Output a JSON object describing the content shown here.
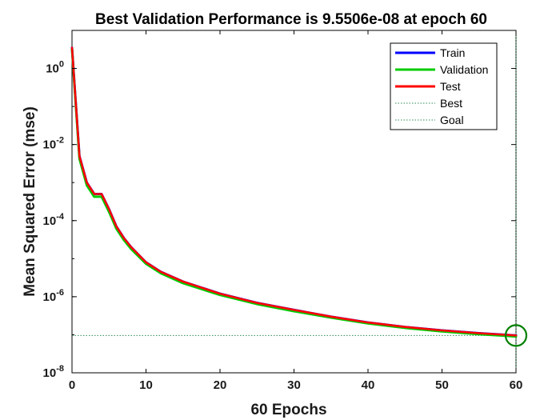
{
  "chart_data": {
    "type": "line",
    "title": "Best Validation Performance is 9.5506e-08 at epoch 60",
    "xlabel": "60 Epochs",
    "ylabel": "Mean Squared Error  (mse)",
    "xlim": [
      0,
      60
    ],
    "ylim": [
      1e-08,
      10
    ],
    "yscale": "log",
    "grid": false,
    "legend_position": "top-right",
    "x_ticks": [
      0,
      10,
      20,
      30,
      40,
      50,
      60
    ],
    "x_tick_labels": [
      "0",
      "10",
      "20",
      "30",
      "40",
      "50",
      "60"
    ],
    "y_ticks": [
      1e-08,
      1e-06,
      0.0001,
      0.01,
      1
    ],
    "y_tick_labels": [
      {
        "base": "10",
        "exp": "-8"
      },
      {
        "base": "10",
        "exp": "-6"
      },
      {
        "base": "10",
        "exp": "-4"
      },
      {
        "base": "10",
        "exp": "-2"
      },
      {
        "base": "10",
        "exp": "0"
      }
    ],
    "x": [
      0,
      1,
      2,
      3,
      4,
      5,
      6,
      7,
      8,
      10,
      12,
      15,
      20,
      25,
      30,
      35,
      40,
      45,
      50,
      55,
      60
    ],
    "series": [
      {
        "name": "Train",
        "color": "#0000ff",
        "style": "solid",
        "values": [
          3.5,
          0.005,
          0.001,
          0.0005,
          0.0005,
          0.0002,
          7e-05,
          3.5e-05,
          2e-05,
          8e-06,
          4.5e-06,
          2.5e-06,
          1.2e-06,
          6.9e-07,
          4.5e-07,
          3e-07,
          2.1e-07,
          1.6e-07,
          1.3e-07,
          1.1e-07,
          9.6e-08
        ]
      },
      {
        "name": "Validation",
        "color": "#00cc00",
        "style": "solid",
        "values": [
          3.5,
          0.0045,
          0.0009,
          0.00045,
          0.00045,
          0.00018,
          6.5e-05,
          3.3e-05,
          1.9e-05,
          7.8e-06,
          4.4e-06,
          2.4e-06,
          1.18e-06,
          6.8e-07,
          4.4e-07,
          3e-07,
          2.1e-07,
          1.6e-07,
          1.3e-07,
          1.1e-07,
          9.55e-08
        ]
      },
      {
        "name": "Test",
        "color": "#ff0000",
        "style": "solid",
        "values": [
          3.5,
          0.005,
          0.001,
          0.0005,
          0.0005,
          0.0002,
          7e-05,
          3.5e-05,
          2e-05,
          8e-06,
          4.5e-06,
          2.5e-06,
          1.2e-06,
          6.9e-07,
          4.5e-07,
          3e-07,
          2.1e-07,
          1.6e-07,
          1.3e-07,
          1.1e-07,
          9.6e-08
        ]
      }
    ],
    "best": {
      "name": "Best",
      "epoch": 60,
      "value": 9.5506e-08,
      "color": "#2e8b57",
      "style": "dotted"
    },
    "goal": {
      "name": "Goal",
      "value": 9.5506e-08,
      "color": "#2e8b57",
      "style": "dotted"
    },
    "best_marker": {
      "epoch": 60,
      "value": 9.5506e-08,
      "shape": "circle",
      "color": "#008000"
    }
  }
}
